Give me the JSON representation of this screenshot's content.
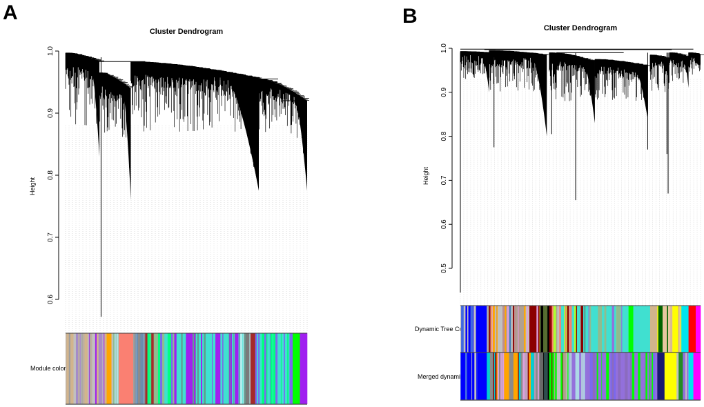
{
  "panels": [
    {
      "letter": "A",
      "title": "Cluster Dendrogram",
      "ylabel": "Height",
      "yticks": [
        "1.0",
        "0.9",
        "0.8",
        "0.7",
        "0.6"
      ],
      "band_labels": [
        "Module colors"
      ]
    },
    {
      "letter": "B",
      "title": "Cluster Dendrogram",
      "ylabel": "Height",
      "yticks": [
        "1.0",
        "0.9",
        "0.8",
        "0.7",
        "0.6",
        "0.5"
      ],
      "band_labels": [
        "Dynamic Tree Cut",
        "Merged dynamic"
      ]
    }
  ],
  "chart_data": [
    {
      "type": "dendrogram",
      "title": "Cluster Dendrogram",
      "ylabel": "Height",
      "ylim": [
        0.55,
        1.0
      ],
      "yticks": [
        1.0,
        0.9,
        0.8,
        0.7,
        0.6
      ],
      "clusters": [
        {
          "from": 0.0,
          "to": 0.14,
          "top": [
            0.997,
            0.984
          ],
          "leaf": [
            0.88,
            0.97
          ],
          "tail": 0.83
        },
        {
          "from": 0.14,
          "to": 0.27,
          "top": [
            0.965,
            0.94
          ],
          "leaf": [
            0.86,
            0.93
          ],
          "tail": 0.76
        },
        {
          "from": 0.27,
          "to": 0.8,
          "top": [
            0.983,
            0.956
          ],
          "leaf": [
            0.87,
            0.96
          ],
          "tail": 0.775
        },
        {
          "from": 0.8,
          "to": 1.0,
          "top": [
            0.955,
            0.92
          ],
          "leaf": [
            0.86,
            0.94
          ],
          "tail": 0.775
        }
      ],
      "merges": [
        {
          "from": 0.07,
          "to": 0.33,
          "height": 0.983
        },
        {
          "from": 0.5,
          "to": 0.88,
          "height": 0.955
        },
        {
          "from": 0.9,
          "to": 0.99,
          "height": 0.92
        }
      ],
      "long_branches": [
        {
          "at": 0.147,
          "height": 0.572
        }
      ],
      "bands": [
        {
          "name": "Module colors",
          "segments": [
            {
              "from": 0.0,
              "to": 0.17,
              "mix": [
                "#bdb0a0",
                "#c0c0c0",
                "#a58bc8",
                "#a020f0",
                "#d2b48c",
                "#9e9e9e"
              ]
            },
            {
              "from": 0.17,
              "to": 0.19,
              "color": "#ffa500"
            },
            {
              "from": 0.19,
              "to": 0.22,
              "mix": [
                "#c0c0c0",
                "#b0e0e6",
                "#8fbc8f"
              ]
            },
            {
              "from": 0.22,
              "to": 0.28,
              "color": "#fa8072"
            },
            {
              "from": 0.28,
              "to": 0.33,
              "mix": [
                "#8b8b8b",
                "#7f9fbf",
                "#6a8caf",
                "#a0a0a0"
              ]
            },
            {
              "from": 0.33,
              "to": 0.45,
              "mix": [
                "#40e0d0",
                "#00ff7f",
                "#8fbc8f",
                "#a52a2a",
                "#7b68ee"
              ]
            },
            {
              "from": 0.45,
              "to": 0.72,
              "mix": [
                "#40e0d0",
                "#40e0d0",
                "#40e0d0",
                "#5f9e90",
                "#a020f0"
              ]
            },
            {
              "from": 0.72,
              "to": 0.765,
              "mix": [
                "#40e0d0",
                "#afeeee",
                "#5f9e90",
                "#7a7a7a"
              ]
            },
            {
              "from": 0.765,
              "to": 0.785,
              "color": "#a52a2a"
            },
            {
              "from": 0.785,
              "to": 0.94,
              "mix": [
                "#40e0d0",
                "#00ff7f",
                "#40e0d0",
                "#7b68ee"
              ]
            },
            {
              "from": 0.94,
              "to": 0.97,
              "color": "#00ff00"
            },
            {
              "from": 0.97,
              "to": 1.0,
              "color": "#a020f0"
            }
          ]
        }
      ]
    },
    {
      "type": "dendrogram",
      "title": "Cluster Dendrogram",
      "ylabel": "Height",
      "ylim": [
        0.42,
        1.0
      ],
      "yticks": [
        1.0,
        0.9,
        0.8,
        0.7,
        0.6,
        0.5
      ],
      "clusters": [
        {
          "from": 0.0,
          "to": 0.12,
          "top": [
            0.993,
            0.99
          ],
          "leaf": [
            0.93,
            0.985
          ],
          "tail": 0.9
        },
        {
          "from": 0.12,
          "to": 0.36,
          "top": [
            0.995,
            0.985
          ],
          "leaf": [
            0.9,
            0.98
          ],
          "tail": 0.8
        },
        {
          "from": 0.37,
          "to": 0.56,
          "top": [
            0.99,
            0.97
          ],
          "leaf": [
            0.88,
            0.97
          ],
          "tail": 0.83
        },
        {
          "from": 0.56,
          "to": 0.78,
          "top": [
            0.975,
            0.96
          ],
          "leaf": [
            0.88,
            0.96
          ],
          "tail": 0.84
        },
        {
          "from": 0.79,
          "to": 0.87,
          "top": [
            0.985,
            0.975
          ],
          "leaf": [
            0.9,
            0.97
          ],
          "tail": 0.92
        },
        {
          "from": 0.87,
          "to": 0.95,
          "top": [
            0.99,
            0.98
          ],
          "leaf": [
            0.92,
            0.98
          ],
          "tail": 0.91
        },
        {
          "from": 0.95,
          "to": 1.0,
          "top": [
            0.99,
            0.985
          ],
          "leaf": [
            0.94,
            0.98
          ],
          "tail": 0.96
        }
      ],
      "merges": [
        {
          "from": 0.0,
          "to": 0.97,
          "height": 0.998
        },
        {
          "from": 0.1,
          "to": 0.88,
          "height": 0.997
        },
        {
          "from": 0.4,
          "to": 0.68,
          "height": 0.99
        }
      ],
      "long_branches": [
        {
          "at": 0.0,
          "height": 0.445
        },
        {
          "at": 0.48,
          "height": 0.655
        },
        {
          "at": 0.865,
          "height": 0.67
        },
        {
          "at": 0.38,
          "height": 0.805
        },
        {
          "at": 0.14,
          "height": 0.775
        },
        {
          "at": 0.86,
          "height": 0.76
        },
        {
          "at": 0.78,
          "height": 0.77
        }
      ],
      "bands": [
        {
          "name": "Dynamic Tree Cut",
          "segments": [
            {
              "from": 0.0,
              "to": 0.07,
              "mix": [
                "#0000ff",
                "#0000ff",
                "#c0c0c0",
                "#4169e1"
              ]
            },
            {
              "from": 0.07,
              "to": 0.11,
              "color": "#0000ff"
            },
            {
              "from": 0.11,
              "to": 0.33,
              "mix": [
                "#c0c0c0",
                "#bc8f8f",
                "#ffa500",
                "#4682b4",
                "#8b0000",
                "#b0a090",
                "#dda0dd"
              ]
            },
            {
              "from": 0.33,
              "to": 0.37,
              "mix": [
                "#000000",
                "#2f4f4f",
                "#556b2f"
              ]
            },
            {
              "from": 0.37,
              "to": 0.52,
              "mix": [
                "#b0a090",
                "#adff2f",
                "#c0c0c0",
                "#fa8072",
                "#8b0000",
                "#40e0d0"
              ]
            },
            {
              "from": 0.52,
              "to": 0.7,
              "mix": [
                "#40e0d0",
                "#40e0d0",
                "#9370db",
                "#8fbc8f"
              ]
            },
            {
              "from": 0.7,
              "to": 0.72,
              "color": "#00ff00"
            },
            {
              "from": 0.72,
              "to": 0.79,
              "color": "#40e0d0"
            },
            {
              "from": 0.79,
              "to": 0.82,
              "color": "#d2b48c"
            },
            {
              "from": 0.82,
              "to": 0.92,
              "mix": [
                "#ffff00",
                "#d2b48c",
                "#e6c8a0",
                "#ffff00",
                "#006400"
              ]
            },
            {
              "from": 0.92,
              "to": 0.95,
              "color": "#00e5ee"
            },
            {
              "from": 0.95,
              "to": 0.98,
              "color": "#ff0000"
            },
            {
              "from": 0.98,
              "to": 1.0,
              "color": "#ff00ff"
            }
          ]
        },
        {
          "name": "Merged dynamic",
          "segments": [
            {
              "from": 0.0,
              "to": 0.07,
              "mix": [
                "#0000ff",
                "#0000ff",
                "#c0c0c0",
                "#4169e1"
              ]
            },
            {
              "from": 0.07,
              "to": 0.11,
              "color": "#0000ff"
            },
            {
              "from": 0.11,
              "to": 0.33,
              "mix": [
                "#dda0dd",
                "#c0a0c0",
                "#8b8b8b",
                "#ffa500",
                "#8b0000",
                "#00ced1"
              ]
            },
            {
              "from": 0.33,
              "to": 0.37,
              "mix": [
                "#000000",
                "#2f4f4f",
                "#696969"
              ]
            },
            {
              "from": 0.37,
              "to": 0.45,
              "mix": [
                "#b0a090",
                "#00ff00",
                "#8b0000",
                "#c0c0c0"
              ]
            },
            {
              "from": 0.45,
              "to": 0.53,
              "mix": [
                "#add8e6",
                "#b0c4de",
                "#9370db"
              ]
            },
            {
              "from": 0.53,
              "to": 0.82,
              "mix": [
                "#9370db",
                "#9370db",
                "#8b6bbf",
                "#7b68ee",
                "#00ff00"
              ]
            },
            {
              "from": 0.82,
              "to": 0.85,
              "color": "#191970"
            },
            {
              "from": 0.85,
              "to": 0.9,
              "color": "#ffff00"
            },
            {
              "from": 0.9,
              "to": 0.95,
              "mix": [
                "#228b22",
                "#9370db",
                "#c0c0c0"
              ]
            },
            {
              "from": 0.95,
              "to": 0.97,
              "color": "#00e5ee"
            },
            {
              "from": 0.97,
              "to": 1.0,
              "color": "#ff00ff"
            }
          ]
        }
      ]
    }
  ]
}
